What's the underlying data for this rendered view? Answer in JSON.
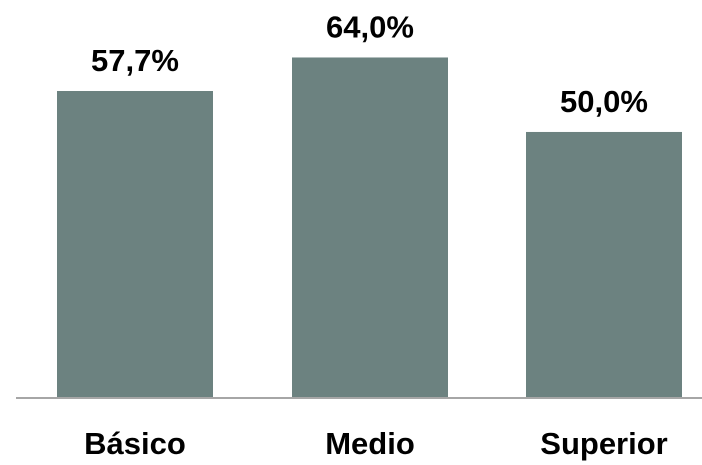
{
  "chart_data": {
    "type": "bar",
    "categories": [
      "Básico",
      "Medio",
      "Superior"
    ],
    "values": [
      57.7,
      64.0,
      50.0
    ],
    "value_labels": [
      "57,7%",
      "64,0%",
      "50,0%"
    ],
    "title": "",
    "xlabel": "",
    "ylabel": "",
    "ylim": [
      0,
      72
    ],
    "grid": false,
    "legend": "none",
    "colors": {
      "bar": "#6c8280",
      "axis": "#a6a6a6",
      "text": "#000000"
    }
  }
}
